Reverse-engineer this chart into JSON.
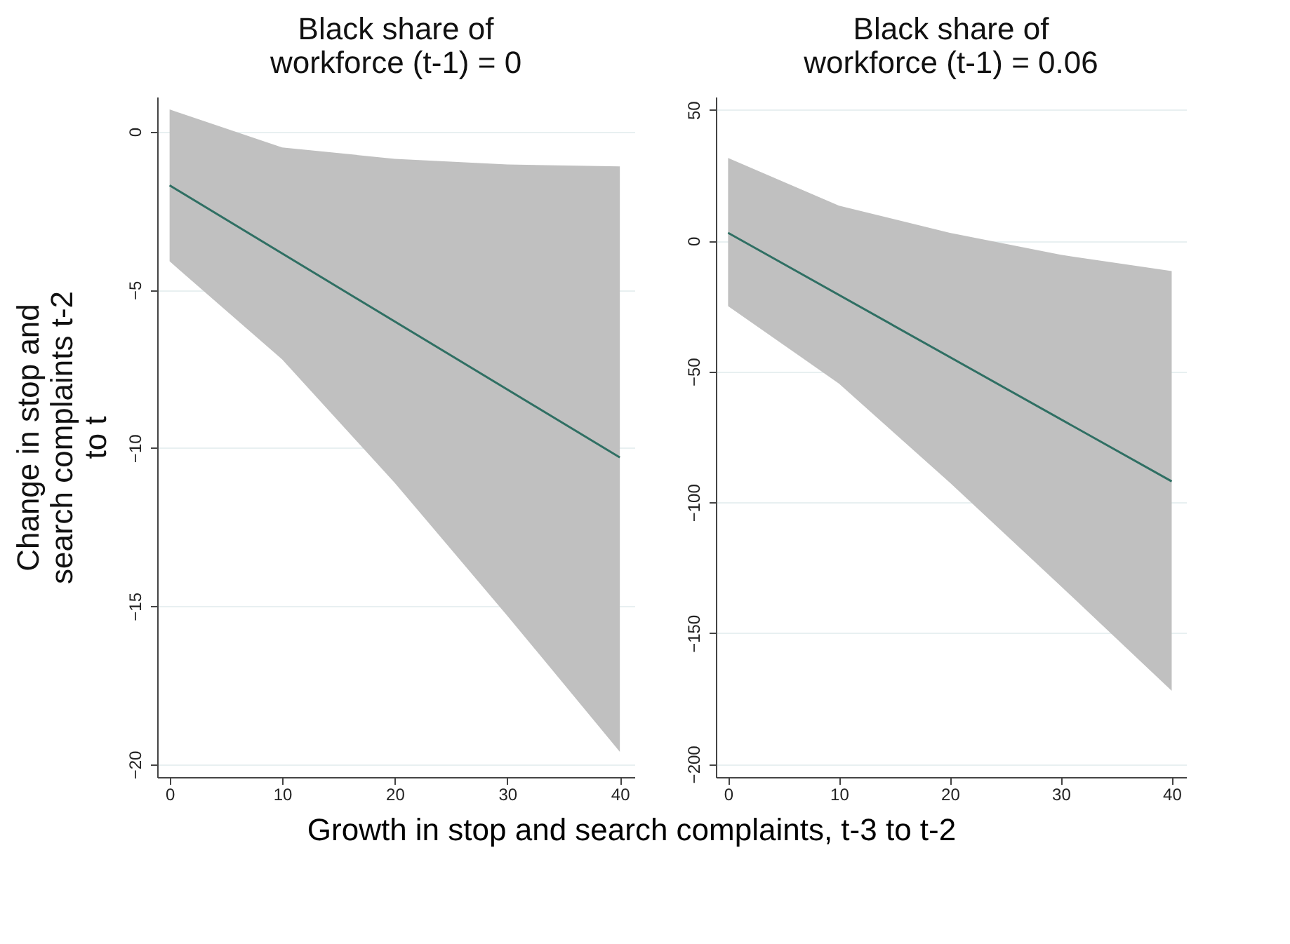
{
  "chart_data": [
    {
      "type": "line",
      "title": "Black share of workforce (t-1) = 0",
      "ylabel": "Change in stop and search complaints t-2 to t",
      "xlabel": "Growth in stop and search complaints, t-3 to t-2",
      "x": [
        0,
        10,
        20,
        30,
        40
      ],
      "xlim": [
        -1.1,
        41.3
      ],
      "xticks": [
        0,
        10,
        20,
        30,
        40
      ],
      "ylim": [
        -20.4,
        1.1
      ],
      "yticks": [
        0,
        -5,
        -10,
        -15,
        -20
      ],
      "grid": "y",
      "marker": "none",
      "line_style": "solid",
      "series": [
        {
          "color": "#2f6f63",
          "values": [
            -1.7,
            null,
            null,
            null,
            -10.3
          ],
          "lower": [
            -4.1,
            -7.2,
            -11.1,
            -15.3,
            -19.6
          ],
          "upper": [
            0.7,
            -0.5,
            -0.86,
            -1.04,
            -1.1
          ]
        }
      ]
    },
    {
      "type": "line",
      "title": "Black share of workforce (t-1) = 0.06",
      "x": [
        0,
        10,
        20,
        30,
        40
      ],
      "xlim": [
        -1.1,
        41.3
      ],
      "xticks": [
        0,
        10,
        20,
        30,
        40
      ],
      "ylim": [
        -205,
        55
      ],
      "yticks": [
        50,
        0,
        -50,
        -100,
        -150,
        -200
      ],
      "grid": "y",
      "marker": "none",
      "line_style": "solid",
      "series": [
        {
          "color": "#2f6f63",
          "values": [
            3,
            null,
            null,
            null,
            -92
          ],
          "lower": [
            -25,
            -54.6,
            -92.5,
            -132,
            -172
          ],
          "upper": [
            31.6,
            13.4,
            3,
            -5.4,
            -11.6
          ]
        }
      ]
    }
  ]
}
